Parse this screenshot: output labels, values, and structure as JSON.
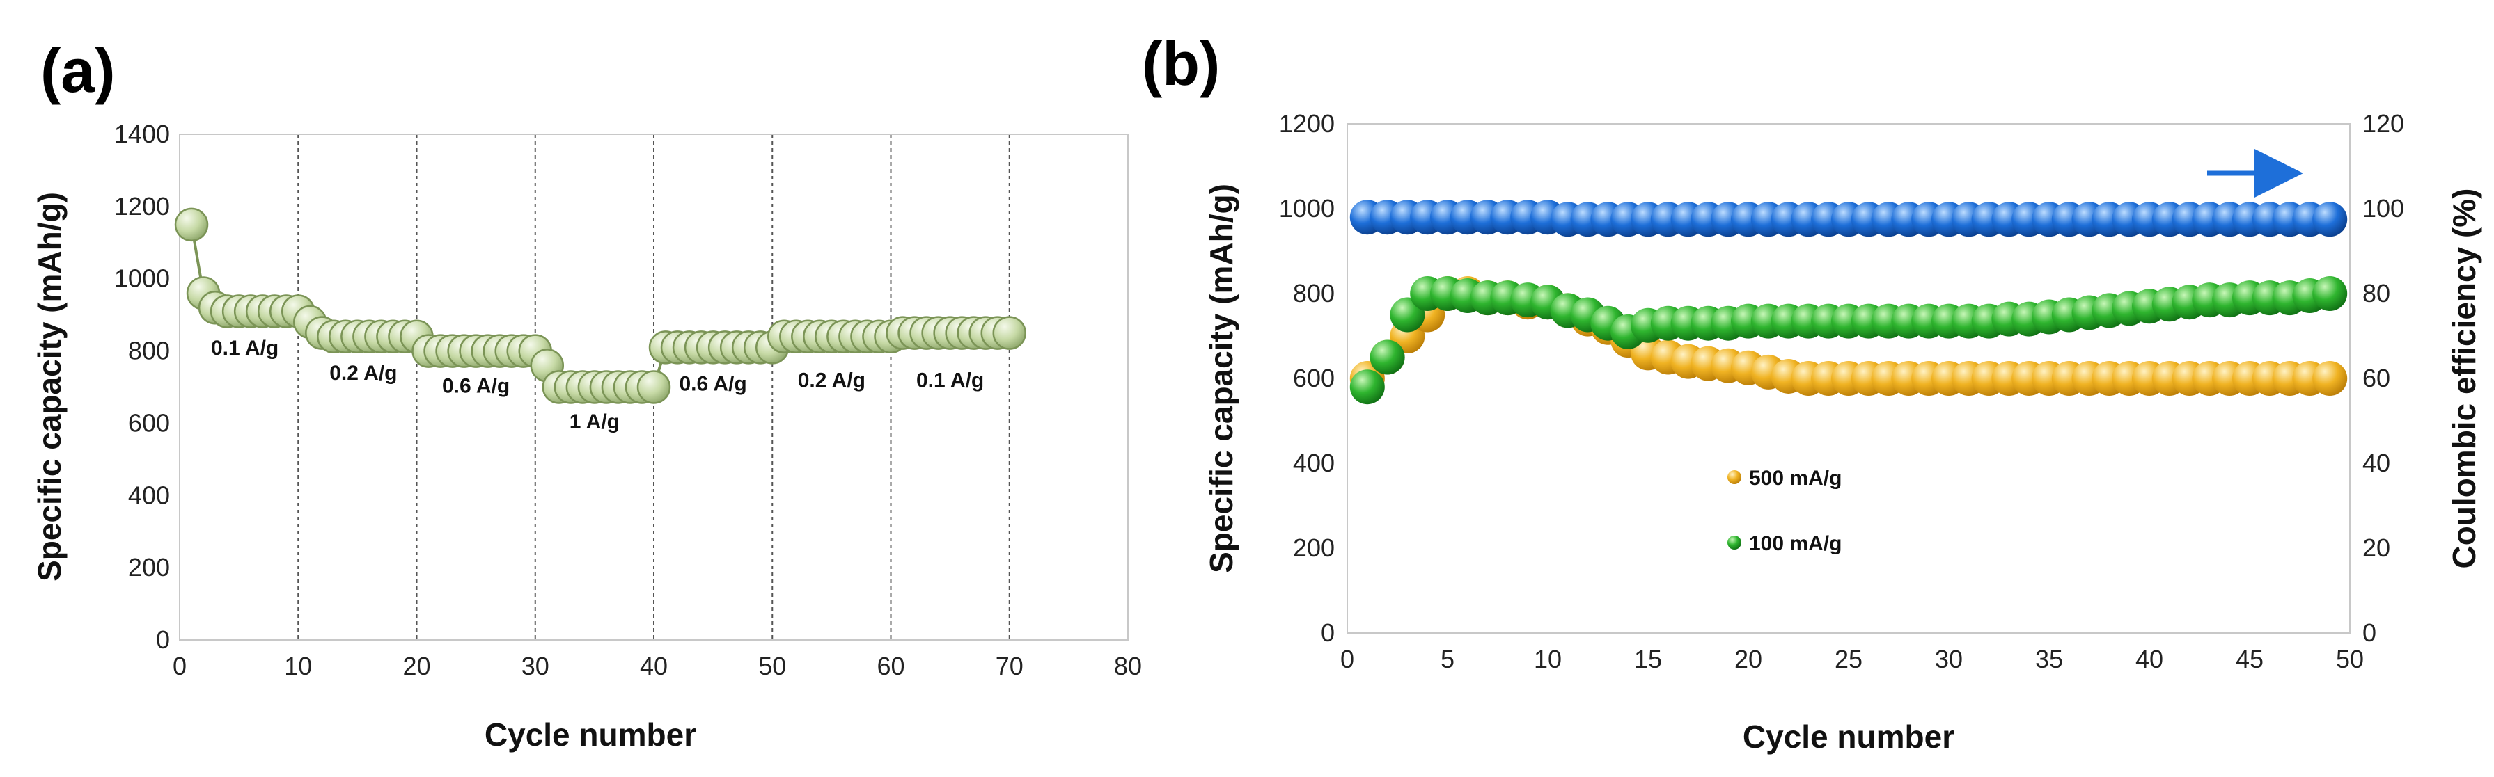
{
  "charts": {
    "a": {
      "panel_label": "(a)",
      "chart_data": {
        "type": "scatter",
        "title": "",
        "xlabel": "Cycle number",
        "ylabel": "Specific capacity (mAh/g)",
        "xlim": [
          0,
          80
        ],
        "ylim": [
          0,
          1400
        ],
        "x_ticks": [
          0,
          10,
          20,
          30,
          40,
          50,
          60,
          70,
          80
        ],
        "y_ticks": [
          0,
          200,
          400,
          600,
          800,
          1000,
          1200,
          1400
        ],
        "vertical_gridlines": [
          10,
          20,
          30,
          40,
          50,
          60,
          70
        ],
        "series": [
          {
            "name": "capacity",
            "color": "#c6d9a5",
            "edge_color": "#7b9456",
            "x": [
              1,
              2,
              3,
              4,
              5,
              6,
              7,
              8,
              9,
              10,
              11,
              12,
              13,
              14,
              15,
              16,
              17,
              18,
              19,
              20,
              21,
              22,
              23,
              24,
              25,
              26,
              27,
              28,
              29,
              30,
              31,
              32,
              33,
              34,
              35,
              36,
              37,
              38,
              39,
              40,
              41,
              42,
              43,
              44,
              45,
              46,
              47,
              48,
              49,
              50,
              51,
              52,
              53,
              54,
              55,
              56,
              57,
              58,
              59,
              60,
              61,
              62,
              63,
              64,
              65,
              66,
              67,
              68,
              69,
              70
            ],
            "y": [
              1150,
              960,
              920,
              910,
              910,
              910,
              910,
              910,
              910,
              910,
              880,
              850,
              840,
              840,
              840,
              840,
              840,
              840,
              840,
              840,
              800,
              800,
              800,
              800,
              800,
              800,
              800,
              800,
              800,
              800,
              760,
              700,
              700,
              700,
              700,
              700,
              700,
              700,
              700,
              700,
              810,
              810,
              810,
              810,
              810,
              810,
              810,
              810,
              810,
              810,
              840,
              840,
              840,
              840,
              840,
              840,
              840,
              840,
              840,
              840,
              850,
              850,
              850,
              850,
              850,
              850,
              850,
              850,
              850,
              850
            ]
          }
        ],
        "annotations": [
          {
            "text": "0.1 A/g",
            "x": 5.5,
            "y": 790
          },
          {
            "text": "0.2 A/g",
            "x": 15.5,
            "y": 720
          },
          {
            "text": "0.6 A/g",
            "x": 25,
            "y": 685
          },
          {
            "text": "1 A/g",
            "x": 35,
            "y": 585
          },
          {
            "text": "0.6 A/g",
            "x": 45,
            "y": 690
          },
          {
            "text": "0.2 A/g",
            "x": 55,
            "y": 700
          },
          {
            "text": "0.1 A/g",
            "x": 65,
            "y": 700
          }
        ]
      }
    },
    "b": {
      "panel_label": "(b)",
      "chart_data": {
        "type": "scatter",
        "title": "",
        "xlabel": "Cycle number",
        "ylabel": "Specific capacity (mAh/g)",
        "y2label": "Coulombic efficiency (%)",
        "xlim": [
          0,
          50
        ],
        "ylim": [
          0,
          1200
        ],
        "y2lim": [
          0,
          120
        ],
        "x_ticks": [
          0,
          5,
          10,
          15,
          20,
          25,
          30,
          35,
          40,
          45,
          50
        ],
        "y_ticks": [
          0,
          200,
          400,
          600,
          800,
          1000,
          1200
        ],
        "y2_ticks": [
          0,
          20,
          40,
          60,
          80,
          100,
          120
        ],
        "arrow": {
          "direction": "right",
          "points_to": "y2",
          "color": "#1e6fd9"
        },
        "legend": {
          "entries": [
            "500 mA/g",
            "100 mA/g"
          ],
          "placement": "center-left"
        },
        "series": [
          {
            "name": "500 mA/g",
            "axis": "y",
            "color": "#f0b323",
            "x": [
              1,
              2,
              3,
              4,
              5,
              6,
              7,
              8,
              9,
              10,
              11,
              12,
              13,
              14,
              15,
              16,
              17,
              18,
              19,
              20,
              21,
              22,
              23,
              24,
              25,
              26,
              27,
              28,
              29,
              30,
              31,
              32,
              33,
              34,
              35,
              36,
              37,
              38,
              39,
              40,
              41,
              42,
              43,
              44,
              45,
              46,
              47,
              48,
              49
            ],
            "y": [
              600,
              650,
              700,
              750,
              800,
              800,
              790,
              790,
              780,
              780,
              760,
              740,
              720,
              690,
              660,
              650,
              640,
              635,
              630,
              625,
              615,
              605,
              600,
              600,
              600,
              600,
              600,
              600,
              600,
              600,
              600,
              600,
              600,
              600,
              600,
              600,
              600,
              600,
              600,
              600,
              600,
              600,
              600,
              600,
              600,
              600,
              600,
              600,
              600
            ]
          },
          {
            "name": "100 mA/g",
            "axis": "y",
            "color": "#2fb52f",
            "x": [
              1,
              2,
              3,
              4,
              5,
              6,
              7,
              8,
              9,
              10,
              11,
              12,
              13,
              14,
              15,
              16,
              17,
              18,
              19,
              20,
              21,
              22,
              23,
              24,
              25,
              26,
              27,
              28,
              29,
              30,
              31,
              32,
              33,
              34,
              35,
              36,
              37,
              38,
              39,
              40,
              41,
              42,
              43,
              44,
              45,
              46,
              47,
              48,
              49
            ],
            "y": [
              580,
              650,
              750,
              800,
              800,
              795,
              790,
              790,
              785,
              780,
              760,
              750,
              730,
              710,
              725,
              730,
              730,
              730,
              730,
              735,
              735,
              735,
              735,
              735,
              735,
              735,
              735,
              735,
              735,
              735,
              735,
              735,
              740,
              740,
              745,
              750,
              755,
              760,
              765,
              770,
              775,
              780,
              785,
              785,
              790,
              790,
              790,
              795,
              800
            ]
          },
          {
            "name": "Coulombic efficiency",
            "axis": "y2",
            "color": "#1e6fd9",
            "x": [
              1,
              2,
              3,
              4,
              5,
              6,
              7,
              8,
              9,
              10,
              11,
              12,
              13,
              14,
              15,
              16,
              17,
              18,
              19,
              20,
              21,
              22,
              23,
              24,
              25,
              26,
              27,
              28,
              29,
              30,
              31,
              32,
              33,
              34,
              35,
              36,
              37,
              38,
              39,
              40,
              41,
              42,
              43,
              44,
              45,
              46,
              47,
              48,
              49
            ],
            "y": [
              98,
              98,
              98,
              98,
              98,
              98,
              98,
              98,
              98,
              98,
              97.5,
              97.5,
              97.5,
              97.5,
              97.5,
              97.5,
              97.5,
              97.5,
              97.5,
              97.5,
              97.5,
              97.5,
              97.5,
              97.5,
              97.5,
              97.5,
              97.5,
              97.5,
              97.5,
              97.5,
              97.5,
              97.5,
              97.5,
              97.5,
              97.5,
              97.5,
              97.5,
              97.5,
              97.5,
              97.5,
              97.5,
              97.5,
              97.5,
              97.5,
              97.5,
              97.5,
              97.5,
              97.5,
              97.5
            ]
          }
        ]
      }
    }
  }
}
